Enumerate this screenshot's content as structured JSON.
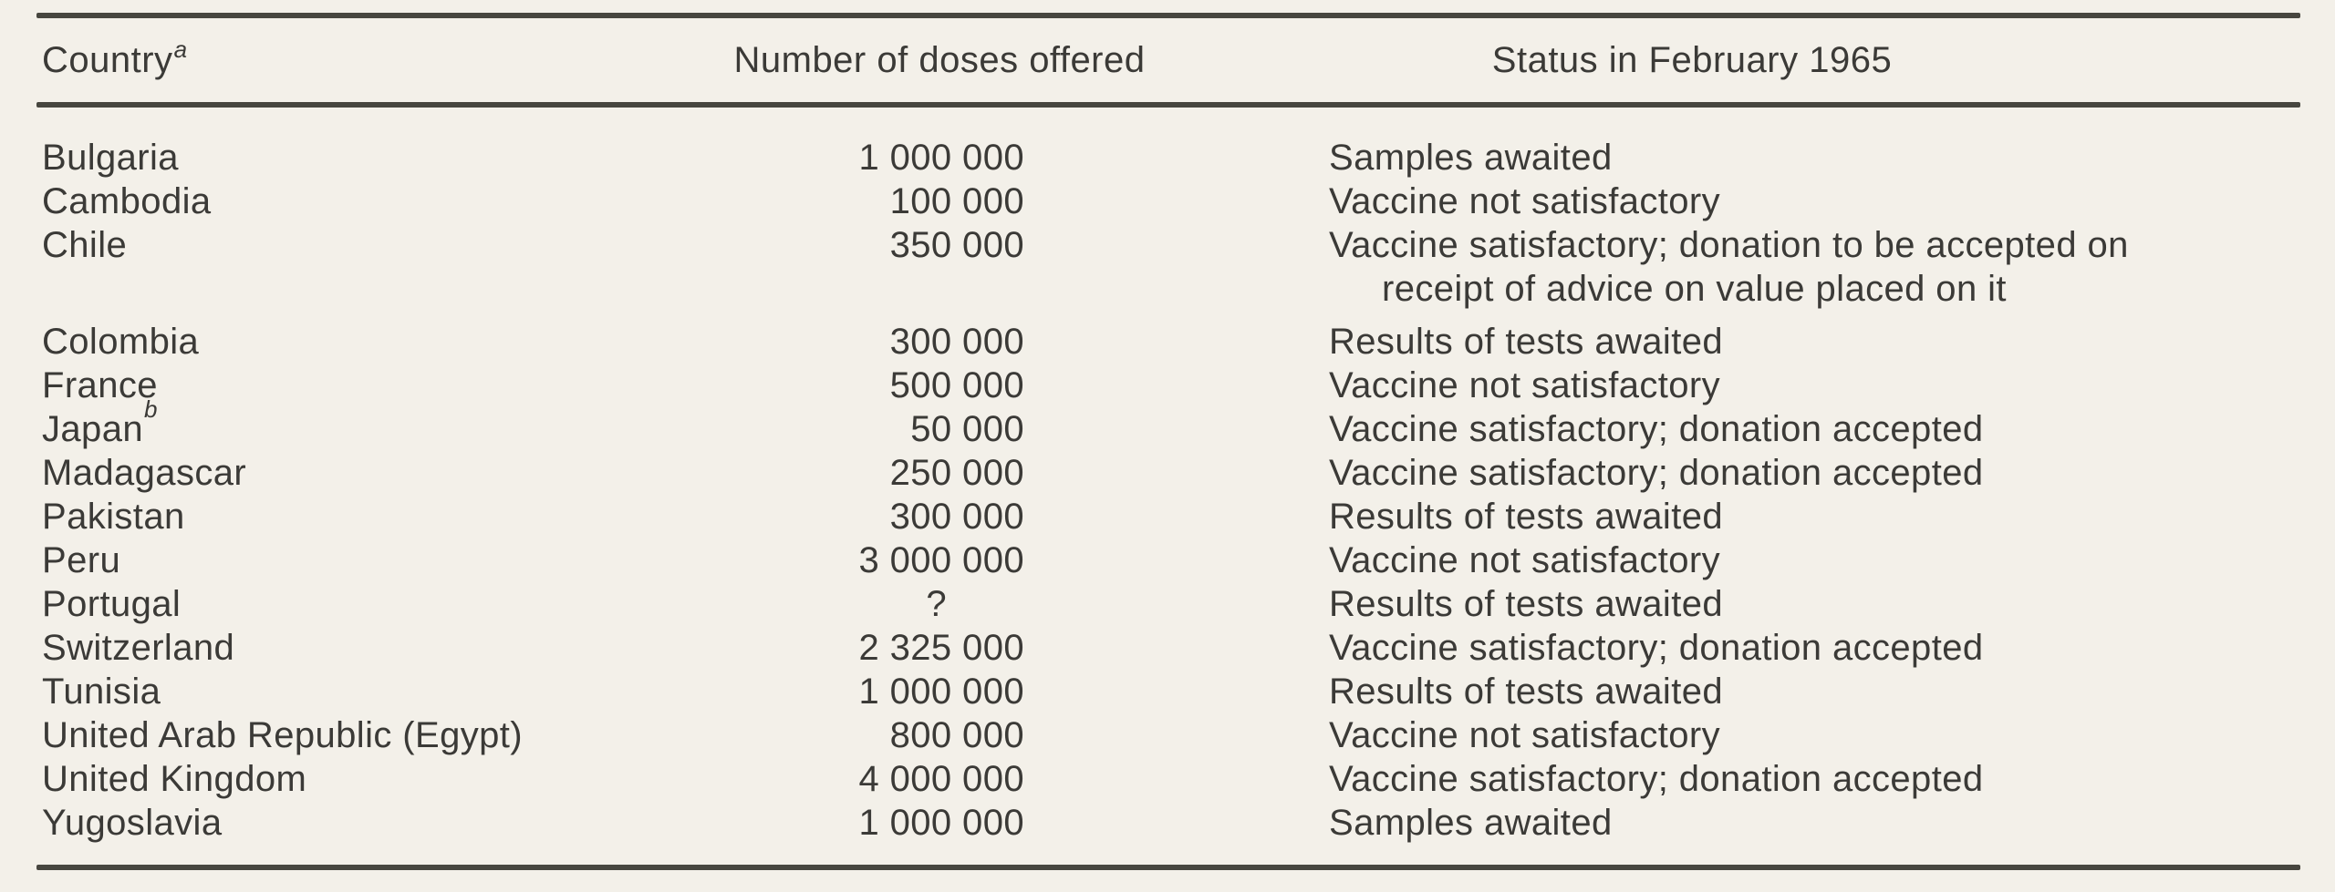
{
  "table": {
    "header": {
      "country": {
        "label": "Country",
        "footnote_marker": "a"
      },
      "doses": {
        "label": "Number of doses offered"
      },
      "status": {
        "label": "Status in February 1965"
      }
    },
    "rows": [
      {
        "country": "Bulgaria",
        "doses": "1 000 000",
        "status": "Samples awaited"
      },
      {
        "country": "Cambodia",
        "doses": "100 000",
        "status": "Vaccine not satisfactory"
      },
      {
        "country": "Chile",
        "doses": "350 000",
        "status": "Vaccine satisfactory; donation to be accepted on\nreceipt of advice on value placed on it",
        "wrapped": true
      },
      {
        "country": "Colombia",
        "doses": "300 000",
        "status": "Results of tests awaited"
      },
      {
        "country": "France",
        "doses": "500 000",
        "status": "Vaccine not satisfactory"
      },
      {
        "country": "Japan",
        "footnote_marker": "b",
        "doses": "50 000",
        "status": "Vaccine satisfactory; donation accepted"
      },
      {
        "country": "Madagascar",
        "doses": "250 000",
        "status": "Vaccine satisfactory; donation accepted"
      },
      {
        "country": "Pakistan",
        "doses": "300 000",
        "status": "Results of tests awaited"
      },
      {
        "country": "Peru",
        "doses": "3 000 000",
        "status": "Vaccine not satisfactory"
      },
      {
        "country": "Portugal",
        "doses": "?",
        "status": "Results of tests awaited"
      },
      {
        "country": "Switzerland",
        "doses": "2 325 000",
        "status": "Vaccine satisfactory; donation accepted"
      },
      {
        "country": "Tunisia",
        "doses": "1 000 000",
        "status": "Results of tests awaited"
      },
      {
        "country": "United Arab Republic (Egypt)",
        "doses": "800 000",
        "status": "Vaccine not satisfactory"
      },
      {
        "country": "United Kingdom",
        "doses": "4 000 000",
        "status": "Vaccine satisfactory; donation accepted"
      },
      {
        "country": "Yugoslavia",
        "doses": "1 000 000",
        "status": "Samples awaited"
      }
    ]
  },
  "colors": {
    "paper_background": "#f3f0e9",
    "ink": "#3b3a37",
    "rule": "#47463f"
  }
}
